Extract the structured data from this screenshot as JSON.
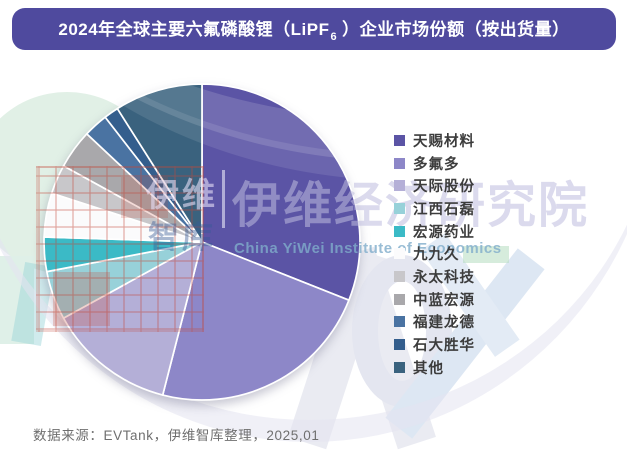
{
  "title": {
    "prefix": "2024年全球主要六氟磷酸锂（LiPF",
    "subscript": "6",
    "suffix": "）企业市场份额（按出货量）"
  },
  "source_note": "数据来源：EVTank，伊维智库整理，2025,01",
  "watermark": {
    "logo_cn_line1": "伊维",
    "logo_cn_line2": "智库",
    "institute_cn": "伊维经济研究院",
    "institute_en": "China YiWei Institute of Economics"
  },
  "colors": {
    "title_bar_bg": "#4f4a9e",
    "title_text": "#ffffff",
    "legend_text": "#3c3c3c",
    "source_text": "#6f6f6f"
  },
  "chart_data": {
    "type": "pie",
    "title": "2024年全球主要六氟磷酸锂（LiPF6 ）企业市场份额（按出货量）",
    "unit": "%",
    "start_angle_deg": 0,
    "direction": "clockwise",
    "values_shown_on_chart": false,
    "values_are_estimates_from_angles": true,
    "legend_position": "right",
    "series": [
      {
        "label": "天赐材料",
        "value": 31,
        "color": "#5b54a5"
      },
      {
        "label": "多氟多",
        "value": 23,
        "color": "#8d87c8"
      },
      {
        "label": "天际股份",
        "value": 13,
        "color": "#b4afd7"
      },
      {
        "label": "江西石磊",
        "value": 5,
        "color": "#97d1d9"
      },
      {
        "label": "宏源药业",
        "value": 3.5,
        "color": "#3bbac6"
      },
      {
        "label": "九九久",
        "value": 4.5,
        "color": "#fbfbfc"
      },
      {
        "label": "永太科技",
        "value": 3,
        "color": "#c8c7ca"
      },
      {
        "label": "中蓝宏源",
        "value": 4,
        "color": "#a9a8ab"
      },
      {
        "label": "福建龙德",
        "value": 2.5,
        "color": "#4a73a2"
      },
      {
        "label": "石大胜华",
        "value": 1.5,
        "color": "#345e8d"
      },
      {
        "label": "其他",
        "value": 9,
        "color": "#3a627e"
      }
    ]
  }
}
